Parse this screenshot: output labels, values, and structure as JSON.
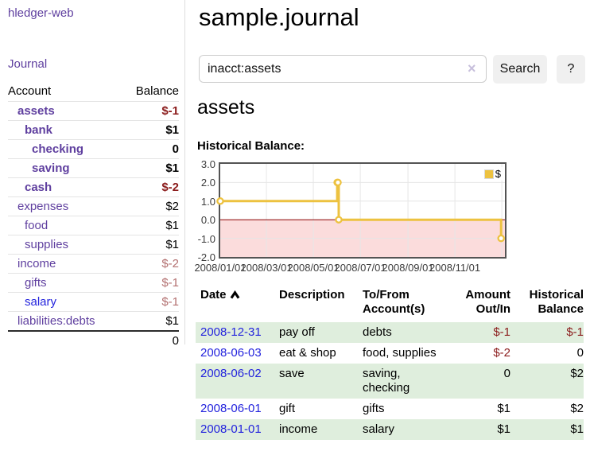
{
  "colors": {
    "link_purple": "#5f3f9f",
    "link_blue": "#2323dd",
    "negative_strong": "#8b1c1c",
    "negative_soft": "#b37070",
    "row_green": "#dfeedd",
    "chart_gold": "#edc240",
    "chart_negative_fill": "#fbdcdc",
    "chart_zero_line": "#8b0000",
    "button_bg": "#f0f0f0"
  },
  "sidebar": {
    "brand": "hledger-web",
    "journal_link": "Journal",
    "header": {
      "account": "Account",
      "balance": "Balance"
    },
    "accounts": [
      {
        "label": "assets",
        "indent": 1,
        "bold": true,
        "balance": "$-1",
        "negative": true
      },
      {
        "label": "bank",
        "indent": 2,
        "bold": true,
        "balance": "$1",
        "negative": false
      },
      {
        "label": "checking",
        "indent": 3,
        "bold": true,
        "balance": "0",
        "negative": false
      },
      {
        "label": "saving",
        "indent": 3,
        "bold": true,
        "balance": "$1",
        "negative": false
      },
      {
        "label": "cash",
        "indent": 2,
        "bold": true,
        "balance": "$-2",
        "negative": true
      },
      {
        "label": "expenses",
        "indent": 1,
        "bold": false,
        "balance": "$2",
        "negative": false
      },
      {
        "label": "food",
        "indent": 2,
        "bold": false,
        "balance": "$1",
        "negative": false
      },
      {
        "label": "supplies",
        "indent": 2,
        "bold": false,
        "balance": "$1",
        "negative": false
      },
      {
        "label": "income",
        "indent": 1,
        "bold": false,
        "balance": "$-2",
        "negative": true
      },
      {
        "label": "gifts",
        "indent": 2,
        "bold": false,
        "balance": "$-1",
        "negative": true
      },
      {
        "label": "salary",
        "indent": 2,
        "bold": false,
        "balance": "$-1",
        "negative": true,
        "visited": false
      },
      {
        "label": "liabilities:debts",
        "indent": 1,
        "bold": false,
        "balance": "$1",
        "negative": false
      }
    ],
    "total": "0"
  },
  "main": {
    "title": "sample.journal",
    "account_heading": "assets"
  },
  "search": {
    "value": "inacct:assets",
    "clear_icon": "×",
    "button_label": "Search",
    "help_label": "?"
  },
  "chart_data": {
    "type": "line",
    "title": "Historical Balance:",
    "step": true,
    "legend": {
      "label": "$",
      "position": "top-right"
    },
    "series": [
      {
        "name": "$",
        "color_key": "chart_gold",
        "points": [
          [
            "2008-01-01",
            1
          ],
          [
            "2008-06-01",
            2
          ],
          [
            "2008-06-02",
            2
          ],
          [
            "2008-06-03",
            0
          ],
          [
            "2008-12-31",
            -1
          ]
        ]
      }
    ],
    "xlim": [
      "2008-01-01",
      "2009-01-05"
    ],
    "ylim": [
      -2,
      3
    ],
    "y_ticks": [
      {
        "v": 3,
        "label": "3.0"
      },
      {
        "v": 2,
        "label": "2.0"
      },
      {
        "v": 1,
        "label": "1.0"
      },
      {
        "v": 0,
        "label": "0.0"
      },
      {
        "v": -1,
        "label": "-1.0"
      },
      {
        "v": -2,
        "label": "-2.0"
      }
    ],
    "x_ticks": [
      {
        "date": "2008-01-01",
        "label": "2008/01/01"
      },
      {
        "date": "2008-03-01",
        "label": "2008/03/01"
      },
      {
        "date": "2008-05-01",
        "label": "2008/05/01"
      },
      {
        "date": "2008-07-01",
        "label": "2008/07/01"
      },
      {
        "date": "2008-09-01",
        "label": "2008/09/01"
      },
      {
        "date": "2008-11-01",
        "label": "2008/11/01"
      },
      {
        "date": "2009-01-01",
        "label": ""
      }
    ],
    "grid": true,
    "negative_region": true
  },
  "register": {
    "headers": [
      "Date",
      "Description",
      "To/From Account(s)",
      "Amount Out/In",
      "Historical Balance"
    ],
    "sort": {
      "column": "Date",
      "direction": "asc"
    },
    "rows": [
      {
        "date": "2008-12-31",
        "description": "pay off",
        "accounts": "debts",
        "amount": "$-1",
        "amount_negative": true,
        "balance": "$-1",
        "balance_negative": true
      },
      {
        "date": "2008-06-03",
        "description": "eat & shop",
        "accounts": "food, supplies",
        "amount": "$-2",
        "amount_negative": true,
        "balance": "0",
        "balance_negative": false
      },
      {
        "date": "2008-06-02",
        "description": "save",
        "accounts": "saving, checking",
        "amount": "0",
        "amount_negative": false,
        "balance": "$2",
        "balance_negative": false
      },
      {
        "date": "2008-06-01",
        "description": "gift",
        "accounts": "gifts",
        "amount": "$1",
        "amount_negative": false,
        "balance": "$2",
        "balance_negative": false
      },
      {
        "date": "2008-01-01",
        "description": "income",
        "accounts": "salary",
        "amount": "$1",
        "amount_negative": false,
        "balance": "$1",
        "balance_negative": false
      }
    ]
  }
}
